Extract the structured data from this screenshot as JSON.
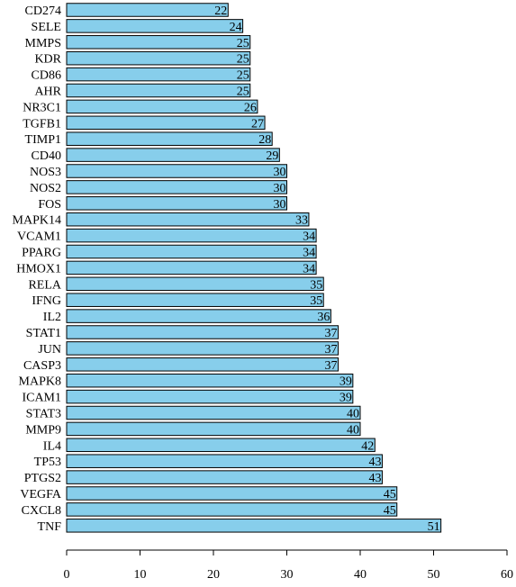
{
  "colors": {
    "bar_fill": "#87CEEB",
    "bar_stroke": "#000000"
  },
  "chart_data": {
    "type": "bar",
    "orientation": "horizontal",
    "categories": [
      "CD274",
      "SELE",
      "MMPS",
      "KDR",
      "CD86",
      "AHR",
      "NR3C1",
      "TGFB1",
      "TIMP1",
      "CD40",
      "NOS3",
      "NOS2",
      "FOS",
      "MAPK14",
      "VCAM1",
      "PPARG",
      "HMOX1",
      "RELA",
      "IFNG",
      "IL2",
      "STAT1",
      "JUN",
      "CASP3",
      "MAPK8",
      "ICAM1",
      "STAT3",
      "MMP9",
      "IL4",
      "TP53",
      "PTGS2",
      "VEGFA",
      "CXCL8",
      "TNF"
    ],
    "values": [
      22,
      24,
      25,
      25,
      25,
      25,
      26,
      27,
      28,
      29,
      30,
      30,
      30,
      33,
      34,
      34,
      34,
      35,
      35,
      36,
      37,
      37,
      37,
      39,
      39,
      40,
      40,
      42,
      43,
      43,
      45,
      45,
      51
    ],
    "title": "",
    "xlabel": "",
    "ylabel": "",
    "xlim": [
      0,
      60
    ],
    "xticks": [
      0,
      10,
      20,
      30,
      40,
      50,
      60
    ],
    "grid": false,
    "legend": "none"
  }
}
